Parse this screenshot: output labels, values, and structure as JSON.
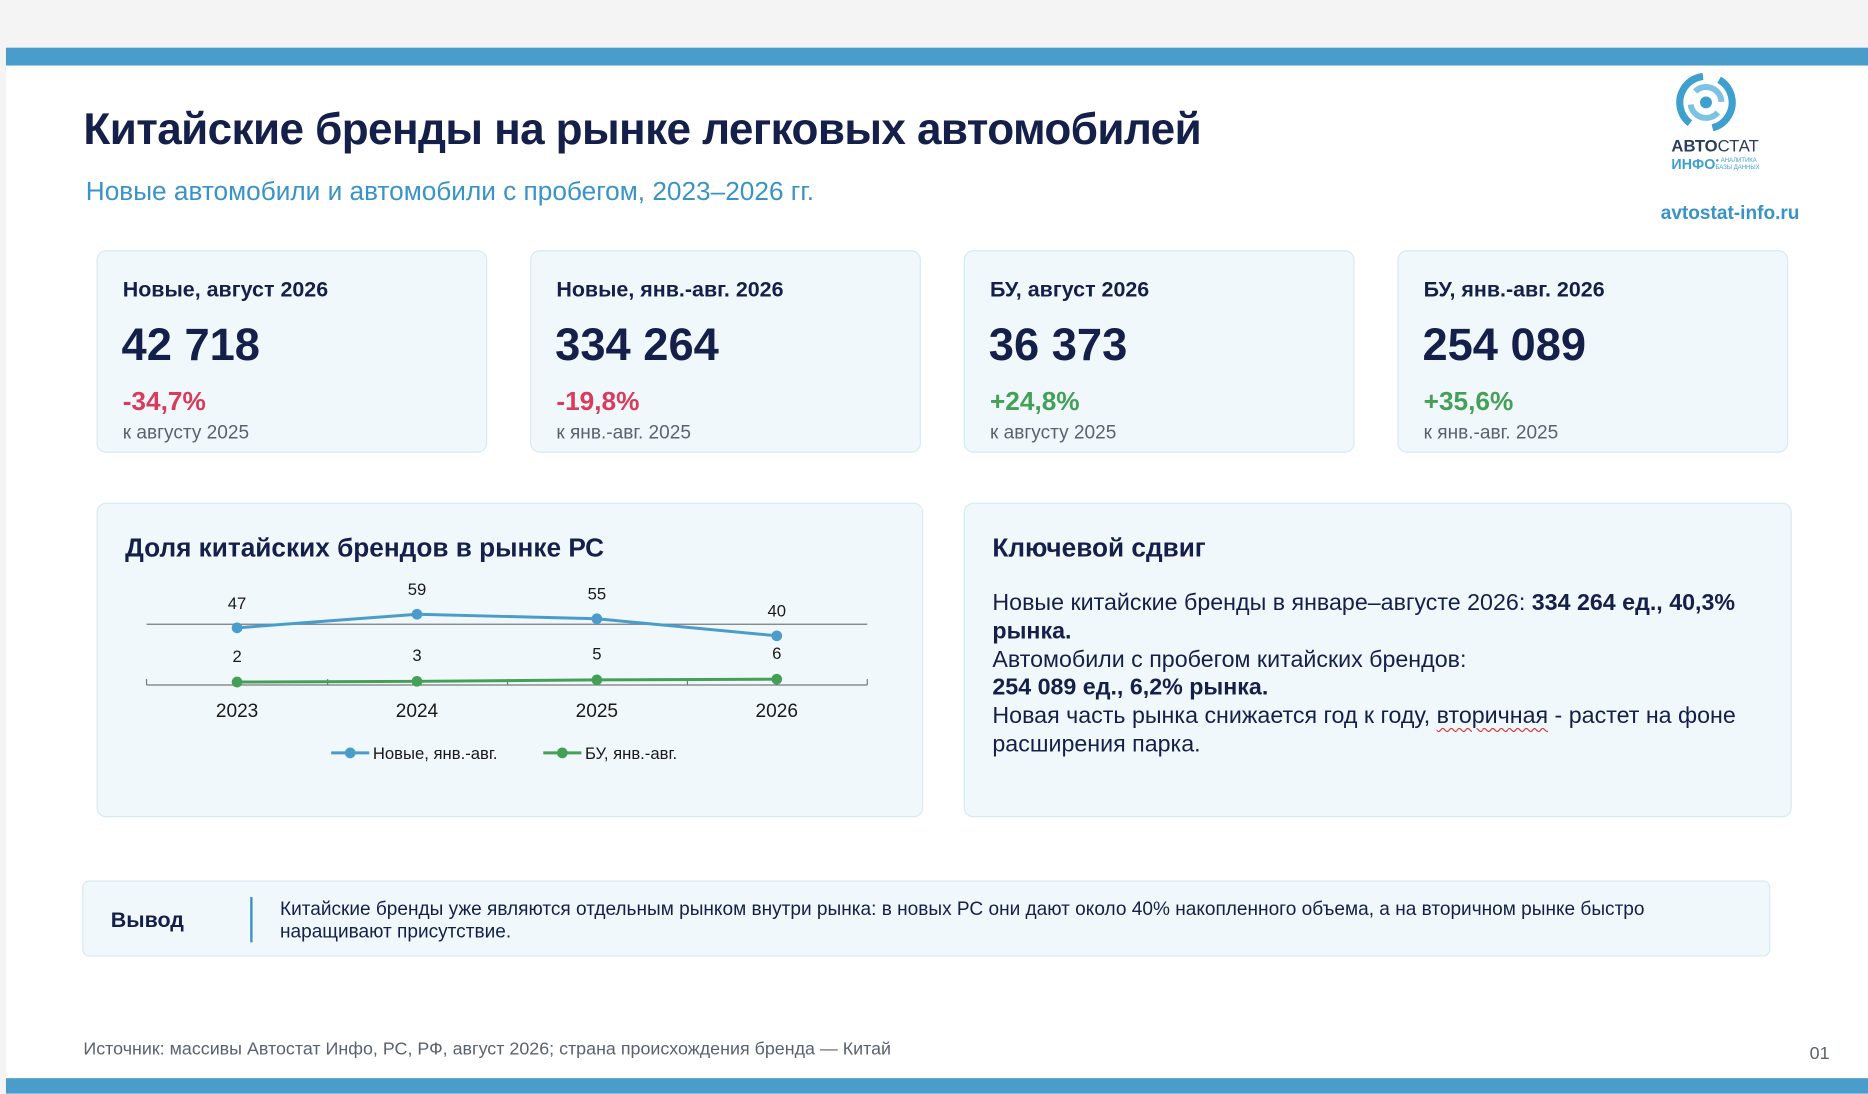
{
  "header": {
    "title": "Китайские бренды на рынке легковых автомобилей",
    "subtitle": "Новые автомобили и автомобили с пробегом, 2023–2026 гг.",
    "logo": {
      "name_bold": "АВТО",
      "name_thin": "СТАТ",
      "name_line2": "ИНФО",
      "tagline_line1": "● АНАЛИТИКА",
      "tagline_line2": "БАЗЫ ДАННЫХ",
      "icon": "swirl-logo-icon"
    },
    "site": "avtostat-info.ru"
  },
  "kpis": [
    {
      "label": "Новые, август 2026",
      "value": "42 718",
      "change": "-34,7%",
      "compare": "к августу 2025"
    },
    {
      "label": "Новые, янв.-авг. 2026",
      "value": "334 264",
      "change": "-19,8%",
      "compare": "к янв.-авг. 2025"
    },
    {
      "label": "БУ, август 2026",
      "value": "36 373",
      "change": "+24,8%",
      "compare": "к августу 2025"
    },
    {
      "label": "БУ, янв.-авг. 2026",
      "value": "254 089",
      "change": "+35,6%",
      "compare": "к янв.-авг. 2025"
    }
  ],
  "colors": {
    "negative": "#d83c5a",
    "positive": "#45a057",
    "accent": "#4a9ccb",
    "dark": "#14204a"
  },
  "share_panel": {
    "title": "Доля китайских брендов в рынке РС"
  },
  "chart_data": {
    "type": "line",
    "title": "Доля китайских брендов в рынке РС",
    "categories": [
      "2023",
      "2024",
      "2025",
      "2026"
    ],
    "series": [
      {
        "name": "Новые, янв.-авг.",
        "values": [
          47,
          59,
          55,
          40
        ],
        "color": "#4a9ccb"
      },
      {
        "name": "БУ, янв.-авг.",
        "values": [
          2,
          3,
          5,
          6
        ],
        "color": "#45a057"
      }
    ],
    "legend": "bottom",
    "grid": false
  },
  "shift_panel": {
    "title": "Ключевой сдвиг",
    "p1_text": "Новые китайские бренды в январе–августе 2026: ",
    "p1_bold": "334 264 ед., 40,3% рынка.",
    "p2_text": "Автомобили с пробегом китайских брендов:",
    "p2_bold": "254 089 ед., 6,2% рынка.",
    "p3_before": "Новая часть рынка снижается год к году, ",
    "p3_flagged": "вторичная",
    "p3_after": " - растет на фоне расширения парка."
  },
  "conclusion": {
    "label": "Вывод",
    "text": "Китайские бренды уже являются отдельным рынком внутри рынка: в новых РС они дают около 40% накопленного объема, а на вторичном рынке быстро наращивают присутствие."
  },
  "footer": {
    "source": "Источник: массивы Автостат Инфо, РС, РФ, август 2026; страна происхождения бренда — Китай",
    "page": "01"
  }
}
